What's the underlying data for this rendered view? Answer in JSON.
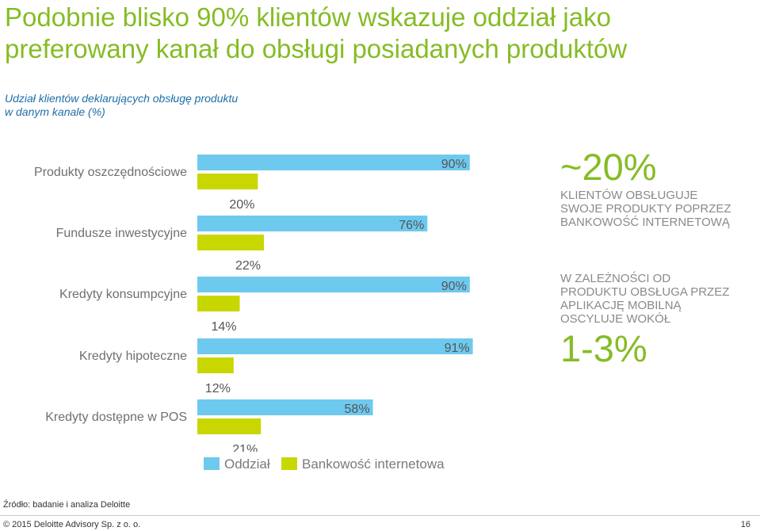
{
  "title": "Podobnie blisko 90% klientów wskazuje oddział jako preferowany kanał do obsługi posiadanych produktów",
  "subtitle": "Udział klientów deklarujących obsługę produktu w danym kanale (%)",
  "colors": {
    "oddzial": "#6ec9ee",
    "bankowosc": "#c9d700",
    "title": "#86bc25",
    "subtitle": "#1e6fa8"
  },
  "chart_data": {
    "type": "bar",
    "orientation": "horizontal",
    "categories": [
      "Produkty oszczędnościowe",
      "Fundusze inwestycyjne",
      "Kredyty konsumpcyjne",
      "Kredyty hipoteczne",
      "Kredyty dostępne w POS"
    ],
    "series": [
      {
        "name": "Oddział",
        "values": [
          90,
          76,
          90,
          91,
          58
        ],
        "labels": [
          "90%",
          "76%",
          "90%",
          "91%",
          "58%"
        ]
      },
      {
        "name": "Bankowość internetowa",
        "values": [
          20,
          22,
          14,
          12,
          21
        ],
        "labels": [
          "20%",
          "22%",
          "14%",
          "12%",
          "21%"
        ]
      }
    ],
    "xlim": [
      0,
      100
    ],
    "grid": false,
    "legend": "bottom"
  },
  "callout1": {
    "value": "~20%",
    "lines": [
      "KLIENTÓW OBSŁUGUJE",
      "SWOJE PRODUKTY POPRZEZ",
      "BANKOWOŚĆ INTERNETOWĄ"
    ]
  },
  "callout2": {
    "lines": [
      "W ZALEŻNOŚCI OD",
      "PRODUKTU OBSŁUGA PRZEZ",
      "APLIKACJĘ MOBILNĄ",
      "OSCYLUJE WOKÓŁ"
    ],
    "value": "1-3%"
  },
  "legend": {
    "oddzial": "Oddział",
    "bankowosc": "Bankowość internetowa"
  },
  "source": "Źródło: badanie i analiza Deloitte",
  "copyright": "© 2015 Deloitte Advisory Sp. z o. o.",
  "page_number": "16"
}
